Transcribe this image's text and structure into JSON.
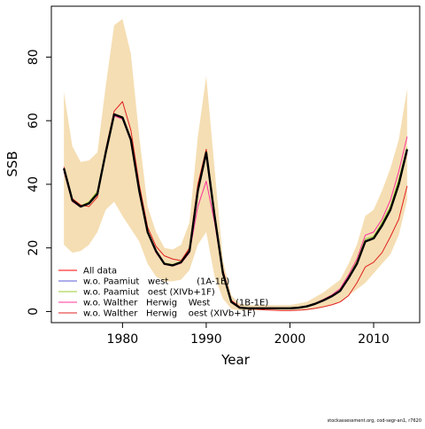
{
  "footer_text": "stockassessment.org, cod-segr-an1, r7620",
  "chart_data": {
    "type": "line",
    "xlabel": "Year",
    "ylabel": "SSB",
    "xlim": [
      1971.5,
      2015.5
    ],
    "ylim": [
      -3.5,
      96
    ],
    "xticks": [
      1980,
      1990,
      2000,
      2010
    ],
    "yticks": [
      0,
      20,
      40,
      60,
      80
    ],
    "legend_position": "bottom-left",
    "band": {
      "color": "#f5deb3",
      "x": [
        1973,
        1974,
        1975,
        1976,
        1977,
        1978,
        1979,
        1980,
        1981,
        1982,
        1983,
        1984,
        1985,
        1986,
        1987,
        1988,
        1989,
        1990,
        1991,
        1992,
        1993,
        1994,
        1995,
        1996,
        1997,
        1998,
        1999,
        2000,
        2001,
        2002,
        2003,
        2004,
        2005,
        2006,
        2007,
        2008,
        2009,
        2010,
        2011,
        2012,
        2013,
        2014
      ],
      "upper": [
        69,
        52,
        47,
        47.5,
        50,
        71,
        90,
        92,
        81,
        55,
        33,
        25,
        20,
        19.5,
        21,
        28,
        55,
        74,
        45,
        16,
        5,
        2.5,
        2,
        2,
        2,
        2,
        2,
        2,
        2.5,
        3,
        4.5,
        6,
        8,
        10,
        15,
        21,
        30,
        32,
        38,
        45,
        54,
        70
      ],
      "lower": [
        21,
        18.5,
        19,
        21,
        25,
        32,
        34.5,
        30,
        26,
        22,
        15,
        11,
        9.5,
        9.5,
        10,
        13,
        21,
        25,
        11,
        4,
        0.8,
        0.4,
        0.4,
        0.4,
        0.4,
        0.4,
        0.4,
        0.4,
        0.4,
        0.5,
        0.8,
        1.2,
        2,
        3,
        5,
        7,
        9,
        12,
        15,
        18,
        24,
        35
      ]
    },
    "series": [
      {
        "name": "All data",
        "color": "#ff0000",
        "values": [
          45,
          35,
          33,
          34,
          37,
          50,
          62,
          61,
          54,
          38,
          25,
          19,
          15,
          14.5,
          15.5,
          19,
          38,
          50,
          30,
          12,
          3,
          1.2,
          1.0,
          1.0,
          1.0,
          1.0,
          1.0,
          1.0,
          1.2,
          1.6,
          2.4,
          3.5,
          4.8,
          6.5,
          10.5,
          15,
          22,
          23,
          27,
          32,
          40,
          50
        ]
      },
      {
        "name": "w.o. Paamiut   west          (1A-1E)",
        "color": "#5b5bd6",
        "values": [
          44.5,
          34.8,
          33,
          34.2,
          37.5,
          50.5,
          61.8,
          61,
          54,
          38,
          25,
          18.8,
          15,
          14.6,
          15.6,
          19,
          38.5,
          49.5,
          30,
          12,
          3,
          1.2,
          1.0,
          1.0,
          1.0,
          1.0,
          1.0,
          1.0,
          1.2,
          1.6,
          2.4,
          3.4,
          4.7,
          6.5,
          10.5,
          15.3,
          22.3,
          23.2,
          27.4,
          32.3,
          40.6,
          50.6
        ]
      },
      {
        "name": "w.o. Paamiut   oest (XIVb+1F)",
        "color": "#99cc33",
        "values": [
          44.8,
          35,
          33.2,
          34.5,
          37.8,
          50.8,
          62,
          61.2,
          54.2,
          38.2,
          25.2,
          19,
          15.2,
          14.8,
          15.8,
          19.2,
          39,
          51,
          30.5,
          12.2,
          3.1,
          1.2,
          1.0,
          1.0,
          1.0,
          1.0,
          1.0,
          1.0,
          1.2,
          1.6,
          2.5,
          3.5,
          4.9,
          6.7,
          10.8,
          15.8,
          22.8,
          23.6,
          28,
          33,
          41.5,
          51.5
        ]
      },
      {
        "name": "w.o. Walther   Herwig    West         (1B-1E)",
        "color": "#ff3399",
        "values": [
          44,
          34.6,
          32.8,
          34,
          36.8,
          49.8,
          61.5,
          60.5,
          53.5,
          37.5,
          24.8,
          18.5,
          14.8,
          14.3,
          15.2,
          18.5,
          33,
          41,
          28,
          11.8,
          3,
          1.2,
          1.0,
          1.0,
          1.0,
          1.0,
          1.0,
          1.0,
          1.3,
          1.7,
          2.6,
          3.8,
          5.2,
          7.2,
          11.5,
          16.5,
          24,
          25,
          29,
          35,
          44,
          55
        ]
      },
      {
        "name": "w.o. Walther   Herwig    oest (XIVb+1F)",
        "color": "#e02020",
        "values": [
          45.5,
          35.5,
          33.5,
          33,
          36,
          51,
          63,
          66,
          57,
          40,
          26.5,
          20.5,
          17.5,
          16.5,
          16,
          20,
          40,
          51,
          31,
          13,
          3.5,
          1.5,
          0.8,
          0.7,
          0.5,
          0.4,
          0.3,
          0.3,
          0.4,
          0.6,
          1.0,
          1.5,
          2.1,
          3.0,
          5.0,
          9.0,
          14,
          15.5,
          18.5,
          23.5,
          29,
          39.5
        ]
      },
      {
        "name": "",
        "color": "#000000",
        "values": [
          45,
          35,
          33,
          34,
          37,
          50,
          62,
          61,
          54,
          38,
          25,
          19,
          15,
          14.5,
          15.5,
          19,
          38,
          50,
          30,
          12,
          3,
          1.2,
          1.0,
          1.0,
          1.0,
          1.0,
          1.0,
          1.0,
          1.2,
          1.6,
          2.4,
          3.5,
          4.8,
          6.5,
          10.5,
          15,
          22,
          23,
          27,
          32,
          40,
          51
        ]
      }
    ]
  }
}
